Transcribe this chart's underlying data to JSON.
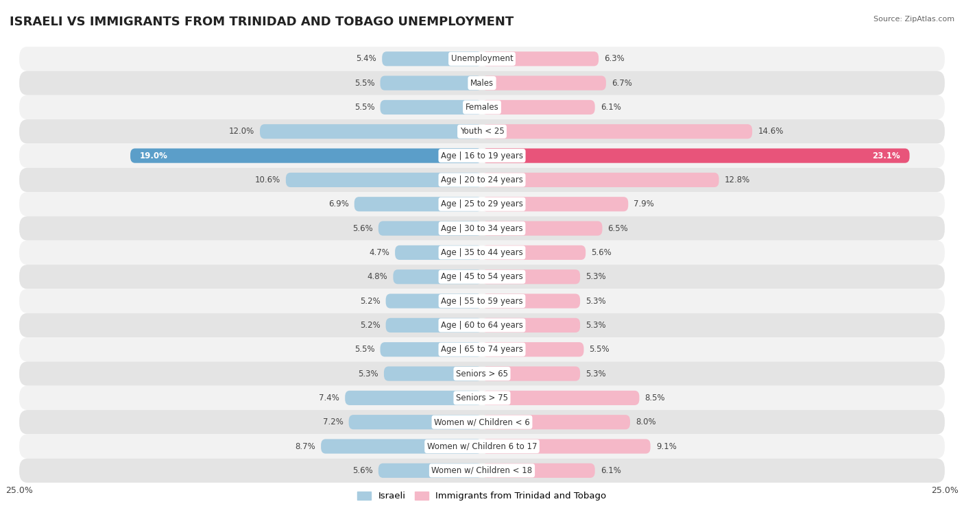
{
  "title": "ISRAELI VS IMMIGRANTS FROM TRINIDAD AND TOBAGO UNEMPLOYMENT",
  "source": "Source: ZipAtlas.com",
  "categories": [
    "Unemployment",
    "Males",
    "Females",
    "Youth < 25",
    "Age | 16 to 19 years",
    "Age | 20 to 24 years",
    "Age | 25 to 29 years",
    "Age | 30 to 34 years",
    "Age | 35 to 44 years",
    "Age | 45 to 54 years",
    "Age | 55 to 59 years",
    "Age | 60 to 64 years",
    "Age | 65 to 74 years",
    "Seniors > 65",
    "Seniors > 75",
    "Women w/ Children < 6",
    "Women w/ Children 6 to 17",
    "Women w/ Children < 18"
  ],
  "israeli_values": [
    5.4,
    5.5,
    5.5,
    12.0,
    19.0,
    10.6,
    6.9,
    5.6,
    4.7,
    4.8,
    5.2,
    5.2,
    5.5,
    5.3,
    7.4,
    7.2,
    8.7,
    5.6
  ],
  "immigrant_values": [
    6.3,
    6.7,
    6.1,
    14.6,
    23.1,
    12.8,
    7.9,
    6.5,
    5.6,
    5.3,
    5.3,
    5.3,
    5.5,
    5.3,
    8.5,
    8.0,
    9.1,
    6.1
  ],
  "israeli_color_normal": "#a8cce0",
  "israeli_color_highlight": "#5b9ec9",
  "immigrant_color_normal": "#f5b8c8",
  "immigrant_color_highlight": "#e8547a",
  "row_bg_light": "#f2f2f2",
  "row_bg_dark": "#e4e4e4",
  "max_val": 25.0,
  "label_israeli": "Israeli",
  "label_immigrant": "Immigrants from Trinidad and Tobago",
  "title_fontsize": 13,
  "bar_fontsize": 8.5,
  "cat_fontsize": 8.5
}
